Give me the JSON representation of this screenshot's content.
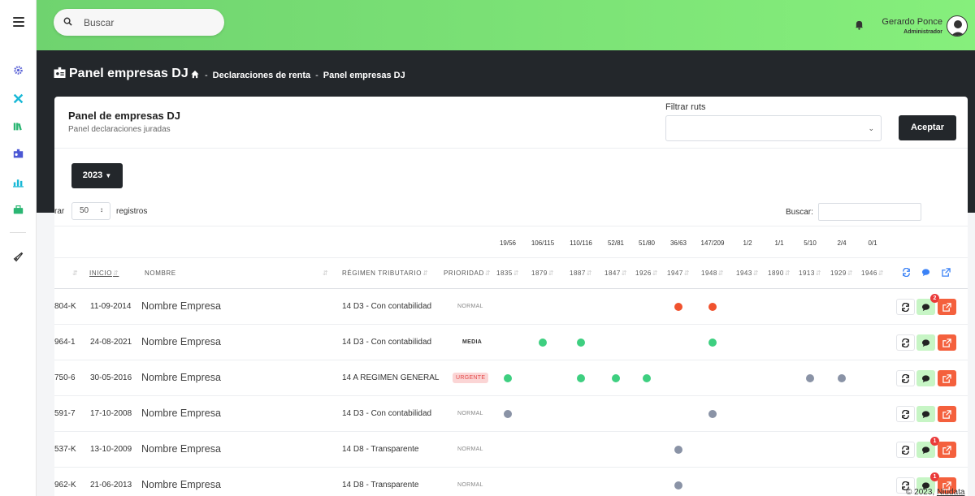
{
  "search": {
    "placeholder": "Buscar"
  },
  "user": {
    "name": "Gerardo Ponce",
    "role": "Administrador"
  },
  "header": {
    "title": "Panel empresas DJ",
    "breadcrumb": [
      "Declaraciones de renta",
      "Panel empresas DJ"
    ],
    "breadcrumb_sep": "-"
  },
  "card": {
    "title": "Panel de empresas DJ",
    "subtitle": "Panel declaraciones juradas",
    "filter_label": "Filtrar ruts",
    "accept_label": "Aceptar",
    "year_label": "2023",
    "show_prefix": "rar",
    "show_value": "50",
    "show_suffix": "registros",
    "table_search_label": "Buscar:"
  },
  "counts": [
    "19/56",
    "106/115",
    "110/116",
    "52/81",
    "51/80",
    "36/63",
    "147/209",
    "1/2",
    "1/1",
    "5/10",
    "2/4",
    "0/1"
  ],
  "table": {
    "headers": {
      "inicio": "INICIO",
      "nombre": "NOMBRE",
      "regimen": "RÉGIMEN TRIBUTARIO",
      "prioridad": "PRIORIDAD"
    },
    "form_codes": [
      "1835",
      "1879",
      "1887",
      "1847",
      "1926",
      "1947",
      "1948",
      "1943",
      "1890",
      "1913",
      "1929",
      "1946"
    ],
    "rows": [
      {
        "id": "804-K",
        "inicio": "11-09-2014",
        "nombre": "Nombre Empresa",
        "regimen": "14 D3 - Con contabilidad",
        "prioridad": "NORMAL",
        "dots": [
          null,
          null,
          null,
          null,
          null,
          "red",
          "red",
          null,
          null,
          null,
          null,
          null
        ],
        "chat_badge": "2"
      },
      {
        "id": "964-1",
        "inicio": "24-08-2021",
        "nombre": "Nombre Empresa",
        "regimen": "14 D3 - Con contabilidad",
        "prioridad": "MEDIA",
        "dots": [
          null,
          "green",
          "green",
          null,
          null,
          null,
          "green",
          null,
          null,
          null,
          null,
          null
        ],
        "chat_badge": ""
      },
      {
        "id": "750-6",
        "inicio": "30-05-2016",
        "nombre": "Nombre Empresa",
        "regimen": "14 A REGIMEN GENERAL",
        "prioridad": "URGENTE",
        "dots": [
          "green",
          null,
          "green",
          "green",
          "green",
          null,
          null,
          null,
          null,
          "gray",
          "gray",
          null
        ],
        "chat_badge": ""
      },
      {
        "id": "591-7",
        "inicio": "17-10-2008",
        "nombre": "Nombre Empresa",
        "regimen": "14 D3 - Con contabilidad",
        "prioridad": "NORMAL",
        "dots": [
          "gray",
          null,
          null,
          null,
          null,
          null,
          "gray",
          null,
          null,
          null,
          null,
          null
        ],
        "chat_badge": ""
      },
      {
        "id": "537-K",
        "inicio": "13-10-2009",
        "nombre": "Nombre Empresa",
        "regimen": "14 D8 - Transparente",
        "prioridad": "NORMAL",
        "dots": [
          null,
          null,
          null,
          null,
          null,
          "gray",
          null,
          null,
          null,
          null,
          null,
          null
        ],
        "chat_badge": "1"
      },
      {
        "id": "962-K",
        "inicio": "21-06-2013",
        "nombre": "Nombre Empresa",
        "regimen": "14 D8 - Transparente",
        "prioridad": "NORMAL",
        "dots": [
          null,
          null,
          null,
          null,
          null,
          "gray",
          null,
          null,
          null,
          null,
          null,
          null
        ],
        "chat_badge": "1"
      }
    ]
  },
  "footer": {
    "copyright": "© 2023,",
    "brand": "Niudata"
  },
  "colors": {
    "topbar": "#86ef7c",
    "dark": "#23272b",
    "red": "#f0522e",
    "green": "#3ecf80",
    "gray": "#8a93a6",
    "edit": "#f4603d",
    "chat": "#c7f5c5"
  },
  "icons": {
    "sidebar": [
      "menu-icon",
      "gear-icon",
      "tools-icon",
      "books-icon",
      "id-card-icon",
      "chart-icon",
      "briefcase-icon",
      "rocket-icon"
    ],
    "header": [
      "bell-icon",
      "avatar-icon",
      "home-icon",
      "search-icon"
    ],
    "table": [
      "sync-icon",
      "comment-icon",
      "external-link-icon"
    ]
  }
}
